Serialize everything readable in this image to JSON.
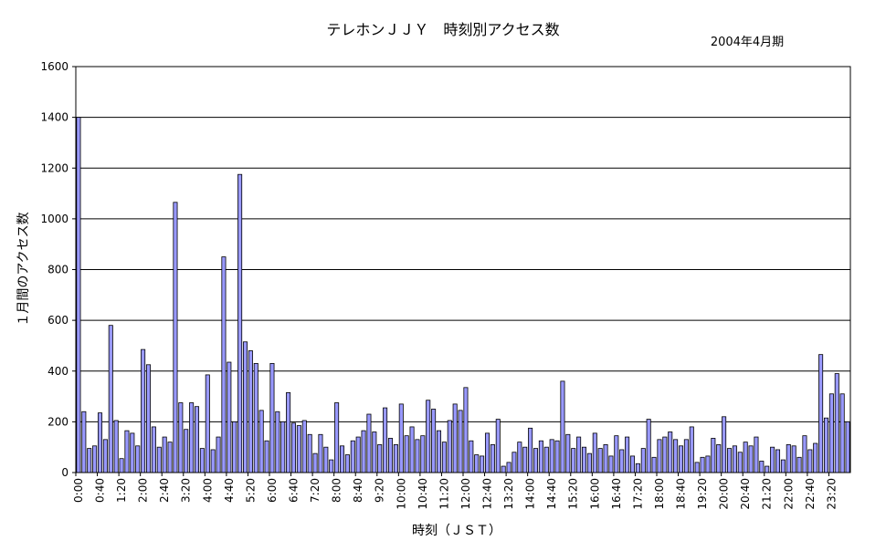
{
  "chart_data": {
    "type": "bar",
    "title": "テレホンＪＪＹ　時刻別アクセス数",
    "subtitle": "2004年4月期",
    "xlabel": "時刻（ＪＳＴ）",
    "ylabel": "１月間のアクセス数",
    "ylim": [
      0,
      1600
    ],
    "yticks": [
      "0",
      "200",
      "400",
      "600",
      "800",
      "1000",
      "1200",
      "1400",
      "1600"
    ],
    "grid": true,
    "bar_color": "#9999ff",
    "bar_edge_color": "#000000",
    "xtick_labels": [
      "0:00",
      "0:40",
      "1:20",
      "2:00",
      "2:40",
      "3:20",
      "4:00",
      "4:40",
      "5:20",
      "6:00",
      "6:40",
      "7:20",
      "8:00",
      "8:40",
      "9:20",
      "10:00",
      "10:40",
      "11:20",
      "12:00",
      "12:40",
      "13:20",
      "14:00",
      "14:40",
      "15:20",
      "16:00",
      "16:40",
      "17:20",
      "18:00",
      "18:40",
      "19:20",
      "20:00",
      "20:40",
      "21:20",
      "22:00",
      "22:40",
      "23:20"
    ],
    "interval_minutes": 10,
    "values": [
      1400,
      240,
      95,
      105,
      235,
      130,
      580,
      205,
      55,
      165,
      155,
      105,
      485,
      425,
      180,
      100,
      140,
      120,
      1065,
      275,
      170,
      275,
      260,
      95,
      385,
      90,
      140,
      850,
      435,
      200,
      1175,
      515,
      480,
      430,
      245,
      125,
      430,
      240,
      200,
      315,
      195,
      185,
      205,
      150,
      75,
      150,
      100,
      50,
      275,
      105,
      70,
      125,
      140,
      165,
      230,
      160,
      110,
      255,
      135,
      110,
      270,
      145,
      180,
      130,
      145,
      285,
      250,
      165,
      120,
      205,
      270,
      245,
      335,
      125,
      70,
      65,
      155,
      110,
      210,
      25,
      40,
      80,
      120,
      100,
      175,
      95,
      125,
      100,
      130,
      125,
      360,
      150,
      95,
      140,
      100,
      75,
      155,
      95,
      110,
      65,
      145,
      90,
      140,
      65,
      35,
      95,
      210,
      60,
      130,
      140,
      160,
      130,
      105,
      130,
      180,
      40,
      60,
      65,
      135,
      110,
      220,
      95,
      105,
      80,
      120,
      105,
      140,
      45,
      25,
      100,
      90,
      50,
      110,
      105,
      60,
      145,
      90,
      115,
      465,
      215,
      310,
      390,
      310,
      200
    ]
  }
}
